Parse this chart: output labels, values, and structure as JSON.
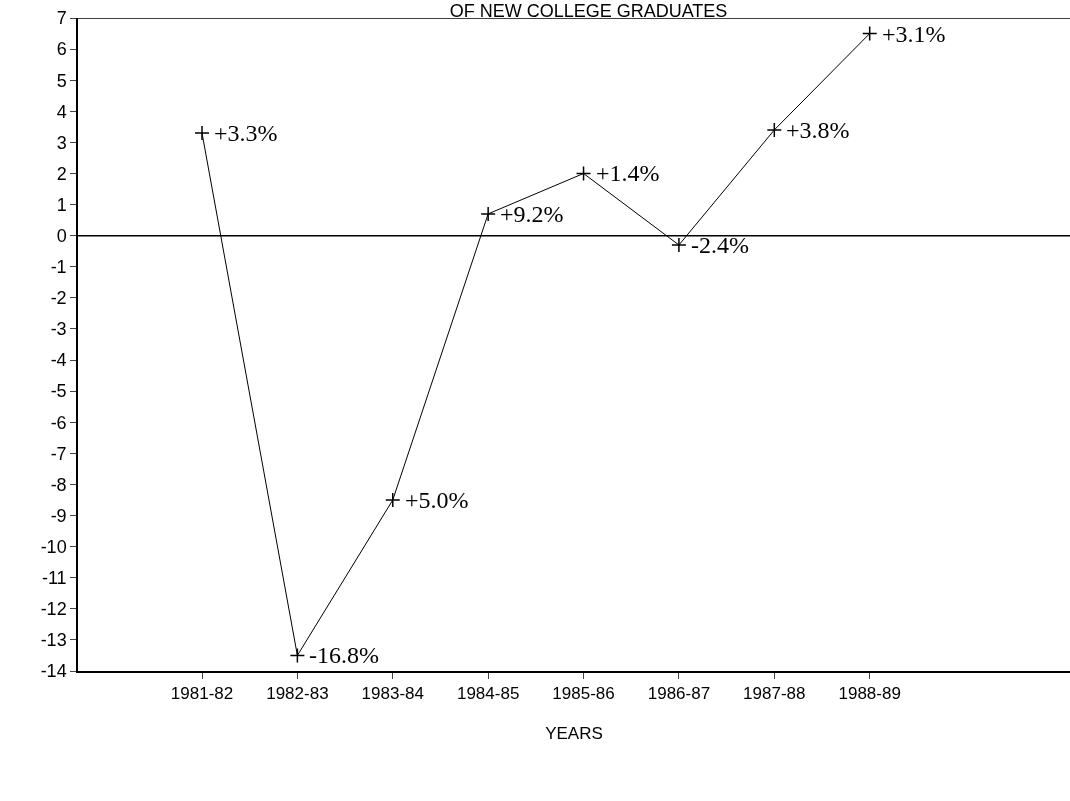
{
  "chart_data": {
    "type": "line",
    "title": "OF NEW COLLEGE GRADUATES",
    "xlabel": "YEARS",
    "categories": [
      "1981-82",
      "1982-83",
      "1983-84",
      "1984-85",
      "1985-86",
      "1986-87",
      "1987-88",
      "1988-89"
    ],
    "series": [
      {
        "color": "#000000",
        "values": [
          3.3,
          -13.5,
          -8.5,
          0.7,
          2.0,
          -0.3,
          3.4,
          6.5
        ]
      }
    ],
    "annotations": [
      {
        "text": "+3.3%",
        "x": "1981-82",
        "y": 3.3
      },
      {
        "text": "-16.8%",
        "x": "1982-83",
        "y": -13.5
      },
      {
        "text": "+5.0%",
        "x": "1983-84",
        "y": -8.5
      },
      {
        "text": "+9.2%",
        "x": "1984-85",
        "y": 0.7
      },
      {
        "text": "+1.4%",
        "x": "1985-86",
        "y": 2.0
      },
      {
        "text": "-2.4%",
        "x": "1986-87",
        "y": -0.3
      },
      {
        "text": "+3.8%",
        "x": "1987-88",
        "y": 3.4
      },
      {
        "text": "+3.1%",
        "x": "1988-89",
        "y": 6.5
      }
    ],
    "ylim": [
      -14,
      7
    ],
    "yticks": [
      -14,
      -13,
      -12,
      -11,
      -10,
      -9,
      -8,
      -7,
      -6,
      -5,
      -4,
      -3,
      -2,
      -1,
      0,
      1,
      2,
      3,
      4,
      5,
      6,
      7
    ],
    "ref_lines": [
      {
        "axis": "y",
        "value": 0,
        "color": "#000000"
      }
    ],
    "marker": "cross",
    "line_style": "solid"
  }
}
